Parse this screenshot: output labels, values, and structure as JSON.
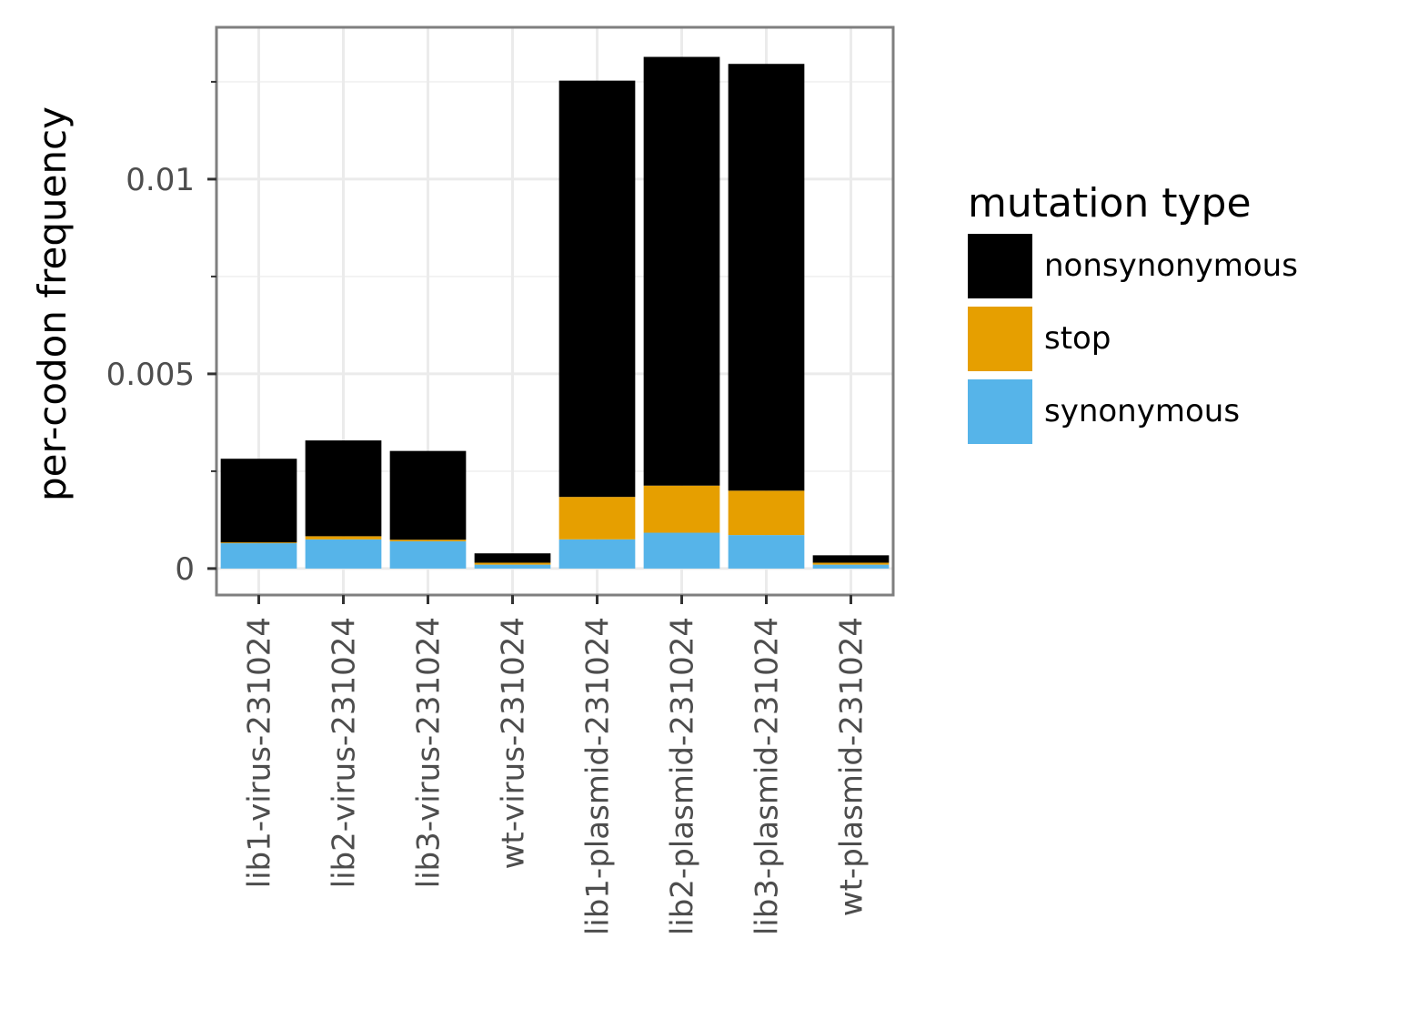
{
  "chart_data": {
    "type": "bar",
    "stacked": true,
    "categories": [
      "lib1-virus-231024",
      "lib2-virus-231024",
      "lib3-virus-231024",
      "wt-virus-231024",
      "lib1-plasmid-231024",
      "lib2-plasmid-231024",
      "lib3-plasmid-231024",
      "wt-plasmid-231024"
    ],
    "series": [
      {
        "name": "synonymous",
        "color": "#56B4E9",
        "values": [
          0.00065,
          0.00075,
          0.0007,
          0.0001,
          0.00075,
          0.00092,
          0.00086,
          0.0001
        ]
      },
      {
        "name": "stop",
        "color": "#E69F00",
        "values": [
          2e-05,
          8e-05,
          4e-05,
          5e-05,
          0.00109,
          0.00121,
          0.00114,
          5e-05
        ]
      },
      {
        "name": "nonsynonymous",
        "color": "#000000",
        "values": [
          0.00215,
          0.00246,
          0.00228,
          0.00024,
          0.01069,
          0.01101,
          0.01096,
          0.00019
        ]
      }
    ],
    "ylabel": "per-codon frequency",
    "xlabel": "",
    "ylim": [
      -0.00068,
      0.0139
    ],
    "yticks": [
      0,
      0.005,
      0.01
    ],
    "ytick_labels": [
      "0",
      "0.005",
      "0.01"
    ],
    "yminor": [
      0.0025,
      0.0075,
      0.0125
    ],
    "grid": true,
    "legend": {
      "title": "mutation type",
      "position": "right",
      "entries": [
        "nonsynonymous",
        "stop",
        "synonymous"
      ]
    }
  }
}
